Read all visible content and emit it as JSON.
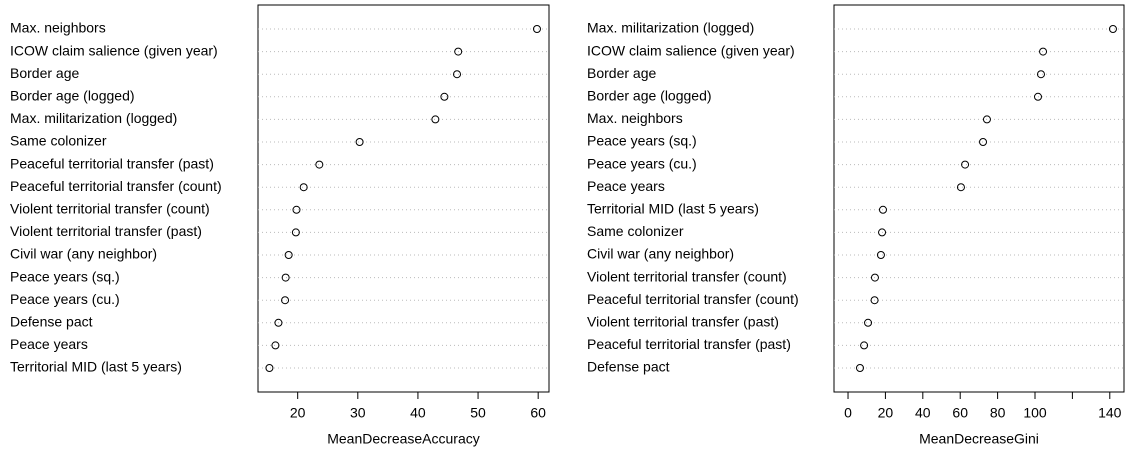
{
  "chart_data": [
    {
      "type": "dot",
      "categories": [
        "Max. neighbors",
        "ICOW claim salience (given year)",
        "Border age",
        "Border age (logged)",
        "Max. militarization (logged)",
        "Same colonizer",
        "Peaceful territorial transfer (past)",
        "Peaceful territorial transfer (count)",
        "Violent territorial transfer (count)",
        "Violent territorial transfer (past)",
        "Civil war (any neighbor)",
        "Peace years (sq.)",
        "Peace years (cu.)",
        "Defense pact",
        "Peace years",
        "Territorial MID (last 5 years)"
      ],
      "values": [
        59.8,
        46.7,
        46.5,
        44.4,
        42.9,
        30.3,
        23.6,
        21.0,
        19.8,
        19.7,
        18.5,
        18.0,
        17.9,
        16.8,
        16.3,
        15.3
      ],
      "xlim": [
        13.4,
        61.8
      ],
      "xticks": [
        20,
        30,
        40,
        50,
        60
      ],
      "xlabel": "MeanDecreaseAccuracy",
      "color": "#000000"
    },
    {
      "type": "dot",
      "categories": [
        "Max. militarization (logged)",
        "ICOW claim salience (given year)",
        "Border age",
        "Border age (logged)",
        "Max. neighbors",
        "Peace years (sq.)",
        "Peace years (cu.)",
        "Peace years",
        "Territorial MID (last 5 years)",
        "Same colonizer",
        "Civil war (any neighbor)",
        "Violent territorial transfer (count)",
        "Peaceful territorial transfer (count)",
        "Violent territorial transfer (past)",
        "Peaceful territorial transfer (past)",
        "Defense pact"
      ],
      "values": [
        141.7,
        104.3,
        103.2,
        101.6,
        74.3,
        72.2,
        62.6,
        60.4,
        18.7,
        18.2,
        17.6,
        14.4,
        14.2,
        10.7,
        8.6,
        6.4
      ],
      "xlim": [
        -7.5,
        147.6
      ],
      "xticks": [
        0,
        20,
        40,
        60,
        80,
        100,
        {
          "value": 120,
          "label": null
        },
        140
      ],
      "xlabel": "MeanDecreaseGini",
      "color": "#000000"
    }
  ]
}
